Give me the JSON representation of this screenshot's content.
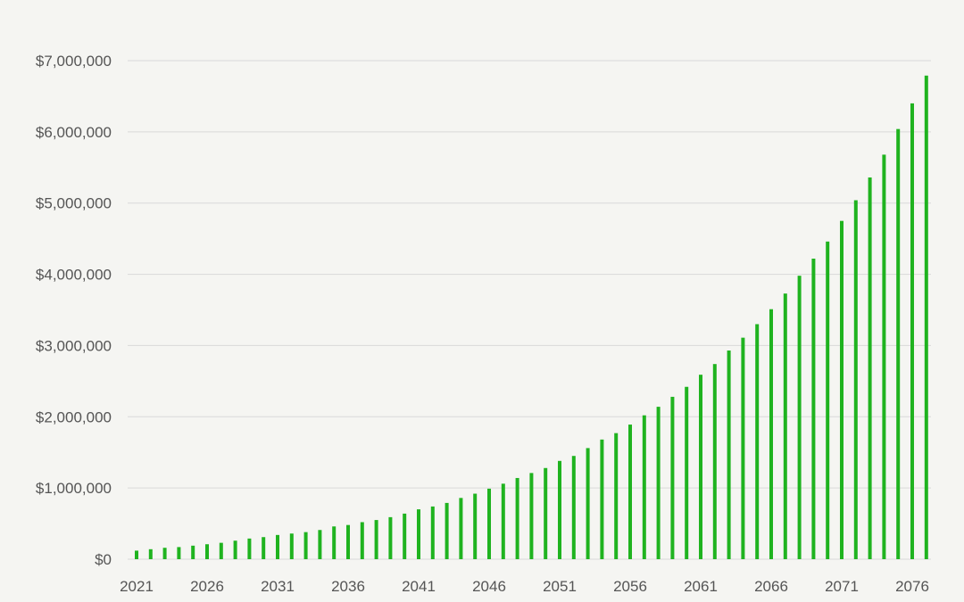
{
  "chart_data": {
    "type": "bar",
    "title": "",
    "xlabel": "",
    "ylabel": "",
    "ylim": [
      0,
      7000000
    ],
    "yticks": [
      0,
      1000000,
      2000000,
      3000000,
      4000000,
      5000000,
      6000000,
      7000000
    ],
    "ytick_labels": [
      "$0",
      "$1,000,000",
      "$2,000,000",
      "$3,000,000",
      "$4,000,000",
      "$5,000,000",
      "$6,000,000",
      "$7,000,000"
    ],
    "xtick_labels": [
      "2021",
      "2026",
      "2031",
      "2036",
      "2041",
      "2046",
      "2051",
      "2056",
      "2061",
      "2066",
      "2071",
      "2076"
    ],
    "grid": true,
    "bar_color": "#1fb31f",
    "grid_color": "#d9d9d9",
    "categories": [
      "2021",
      "2022",
      "2023",
      "2024",
      "2025",
      "2026",
      "2027",
      "2028",
      "2029",
      "2030",
      "2031",
      "2032",
      "2033",
      "2034",
      "2035",
      "2036",
      "2037",
      "2038",
      "2039",
      "2040",
      "2041",
      "2042",
      "2043",
      "2044",
      "2045",
      "2046",
      "2047",
      "2048",
      "2049",
      "2050",
      "2051",
      "2052",
      "2053",
      "2054",
      "2055",
      "2056",
      "2057",
      "2058",
      "2059",
      "2060",
      "2061",
      "2062",
      "2063",
      "2064",
      "2065",
      "2066",
      "2067",
      "2068",
      "2069",
      "2070",
      "2071",
      "2072",
      "2073",
      "2074",
      "2075",
      "2076",
      "2077"
    ],
    "values": [
      120000,
      140000,
      160000,
      170000,
      190000,
      210000,
      230000,
      260000,
      290000,
      310000,
      340000,
      360000,
      380000,
      410000,
      460000,
      480000,
      520000,
      550000,
      590000,
      640000,
      700000,
      740000,
      790000,
      860000,
      920000,
      990000,
      1060000,
      1140000,
      1210000,
      1280000,
      1380000,
      1450000,
      1560000,
      1680000,
      1770000,
      1890000,
      2020000,
      2140000,
      2280000,
      2420000,
      2590000,
      2740000,
      2930000,
      3110000,
      3300000,
      3510000,
      3730000,
      3980000,
      4220000,
      4460000,
      4750000,
      5040000,
      5360000,
      5680000,
      6040000,
      6400000,
      6790000
    ]
  }
}
